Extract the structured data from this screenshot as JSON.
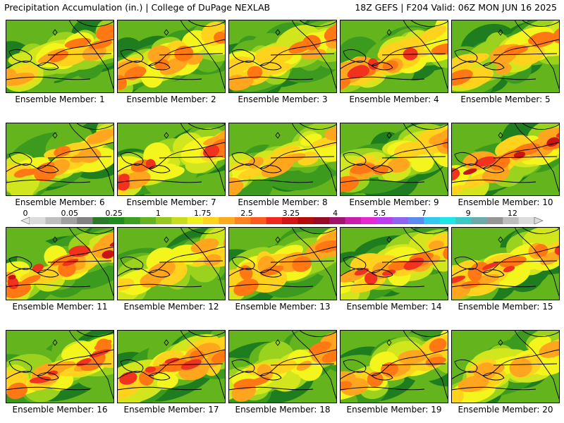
{
  "header": {
    "title": "Precipitation Accumulation (in.) | College of DuPage NEXLAB",
    "run_info": "18Z GEFS | F204 Valid: 06Z MON JUN 16 2025"
  },
  "legend": {
    "tick_labels": [
      "0",
      "0.05",
      "0.25",
      "1",
      "1.75",
      "2.5",
      "3.25",
      "4",
      "5.5",
      "7",
      "9",
      "12"
    ],
    "colors": [
      "#dcdcdc",
      "#bebebe",
      "#a0a0a0",
      "#828282",
      "#2a7a2a",
      "#1e8c1e",
      "#3ea01e",
      "#63b41e",
      "#96c81e",
      "#c8dc1e",
      "#f0f01e",
      "#ffd21e",
      "#ffaa1e",
      "#ff821e",
      "#ff5a1e",
      "#f0281e",
      "#d21414",
      "#b40a0a",
      "#960a28",
      "#a0146e",
      "#c81eaa",
      "#e628d2",
      "#be3cf0",
      "#8c64f0",
      "#5a8cf0",
      "#32c8f0",
      "#1ee6e6",
      "#3cc8c8",
      "#6eaaaa",
      "#969696",
      "#bebebe",
      "#dcdcdc"
    ]
  },
  "panels": [
    {
      "label": "Ensemble Member: 1",
      "intensity": 0.55,
      "seed": 11
    },
    {
      "label": "Ensemble Member: 2",
      "intensity": 0.45,
      "seed": 22
    },
    {
      "label": "Ensemble Member: 3",
      "intensity": 0.5,
      "seed": 33
    },
    {
      "label": "Ensemble Member: 4",
      "intensity": 0.65,
      "seed": 44
    },
    {
      "label": "Ensemble Member: 5",
      "intensity": 0.45,
      "seed": 55
    },
    {
      "label": "Ensemble Member: 6",
      "intensity": 0.5,
      "seed": 66
    },
    {
      "label": "Ensemble Member: 7",
      "intensity": 0.6,
      "seed": 77
    },
    {
      "label": "Ensemble Member: 8",
      "intensity": 0.4,
      "seed": 88
    },
    {
      "label": "Ensemble Member: 9",
      "intensity": 0.55,
      "seed": 99
    },
    {
      "label": "Ensemble Member: 10",
      "intensity": 0.7,
      "seed": 110
    },
    {
      "label": "Ensemble Member: 11",
      "intensity": 0.7,
      "seed": 121
    },
    {
      "label": "Ensemble Member: 12",
      "intensity": 0.35,
      "seed": 132
    },
    {
      "label": "Ensemble Member: 13",
      "intensity": 0.55,
      "seed": 143
    },
    {
      "label": "Ensemble Member: 14",
      "intensity": 0.6,
      "seed": 154
    },
    {
      "label": "Ensemble Member: 15",
      "intensity": 0.65,
      "seed": 165
    },
    {
      "label": "Ensemble Member: 16",
      "intensity": 0.6,
      "seed": 176
    },
    {
      "label": "Ensemble Member: 17",
      "intensity": 0.6,
      "seed": 187
    },
    {
      "label": "Ensemble Member: 18",
      "intensity": 0.55,
      "seed": 198
    },
    {
      "label": "Ensemble Member: 19",
      "intensity": 0.45,
      "seed": 209
    },
    {
      "label": "Ensemble Member: 20",
      "intensity": 0.35,
      "seed": 220
    }
  ]
}
